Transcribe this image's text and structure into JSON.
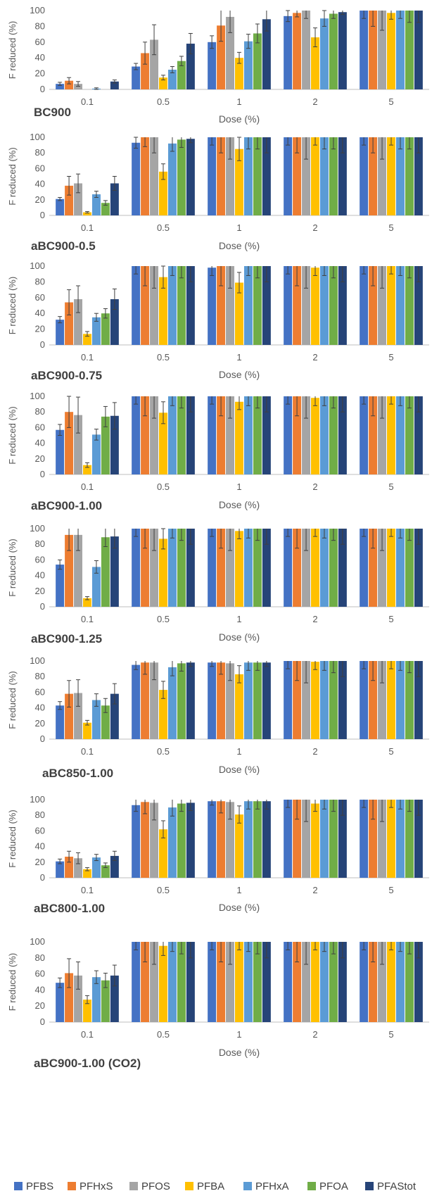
{
  "series_colors": [
    "#4472C4",
    "#ED7D31",
    "#A5A5A5",
    "#FFC000",
    "#5B9BD5",
    "#70AD47",
    "#264478"
  ],
  "chart_data": [
    {
      "type": "bar",
      "title": "BC900",
      "xlabel": "Dose (%)",
      "ylabel": "F reduced (%)",
      "ylim": [
        0,
        100
      ],
      "yticks": [
        0,
        20,
        40,
        60,
        80,
        100
      ],
      "grid": false,
      "legend": "bottom",
      "categories": [
        "0.1",
        "0.5",
        "1",
        "2",
        "5"
      ],
      "series": [
        {
          "name": "PFBS",
          "values": [
            7,
            29,
            60,
            93,
            100
          ],
          "errors": [
            2,
            4,
            8,
            7,
            10
          ]
        },
        {
          "name": "PFHxS",
          "values": [
            11,
            46,
            81,
            97,
            100
          ],
          "errors": [
            4,
            14,
            20,
            5,
            20
          ]
        },
        {
          "name": "PFOS",
          "values": [
            7,
            63,
            92,
            100,
            100
          ],
          "errors": [
            3,
            19,
            20,
            10,
            25
          ]
        },
        {
          "name": "PFBA",
          "values": [
            0,
            15,
            40,
            66,
            97
          ],
          "errors": [
            0,
            3,
            7,
            12,
            8
          ]
        },
        {
          "name": "PFHxA",
          "values": [
            1,
            25,
            61,
            90,
            100
          ],
          "errors": [
            1,
            4,
            9,
            10,
            10
          ]
        },
        {
          "name": "PFOA",
          "values": [
            0,
            36,
            71,
            96,
            100
          ],
          "errors": [
            0,
            6,
            12,
            6,
            15
          ]
        },
        {
          "name": "PFAStot",
          "values": [
            10,
            58,
            89,
            98,
            100
          ],
          "errors": [
            2,
            13,
            15,
            3,
            15
          ]
        }
      ]
    },
    {
      "type": "bar",
      "title": "aBC900-0.5",
      "xlabel": "Dose (%)",
      "ylabel": "F reduced (%)",
      "ylim": [
        0,
        100
      ],
      "yticks": [
        0,
        20,
        40,
        60,
        80,
        100
      ],
      "grid": false,
      "legend": "bottom",
      "categories": [
        "0.1",
        "0.5",
        "1",
        "2",
        "5"
      ],
      "series": [
        {
          "name": "PFBS",
          "values": [
            21,
            93,
            100,
            100,
            100
          ],
          "errors": [
            2,
            7,
            10,
            10,
            10
          ]
        },
        {
          "name": "PFHxS",
          "values": [
            38,
            100,
            100,
            100,
            100
          ],
          "errors": [
            12,
            12,
            20,
            20,
            20
          ]
        },
        {
          "name": "PFOS",
          "values": [
            41,
            100,
            100,
            100,
            100
          ],
          "errors": [
            12,
            20,
            28,
            28,
            28
          ]
        },
        {
          "name": "PFBA",
          "values": [
            4,
            56,
            85,
            100,
            100
          ],
          "errors": [
            1,
            10,
            15,
            10,
            10
          ]
        },
        {
          "name": "PFHxA",
          "values": [
            27,
            92,
            100,
            100,
            100
          ],
          "errors": [
            4,
            10,
            15,
            15,
            15
          ]
        },
        {
          "name": "PFOA",
          "values": [
            16,
            97,
            100,
            100,
            100
          ],
          "errors": [
            3,
            10,
            15,
            15,
            15
          ]
        },
        {
          "name": "PFAStot",
          "values": [
            41,
            98,
            100,
            100,
            100
          ],
          "errors": [
            9,
            5,
            20,
            20,
            20
          ]
        }
      ]
    },
    {
      "type": "bar",
      "title": "aBC900-0.75",
      "xlabel": "Dose (%)",
      "ylabel": "F reduced (%)",
      "ylim": [
        0,
        100
      ],
      "yticks": [
        0,
        20,
        40,
        60,
        80,
        100
      ],
      "grid": false,
      "legend": "bottom",
      "categories": [
        "0.1",
        "0.5",
        "1",
        "2",
        "5"
      ],
      "series": [
        {
          "name": "PFBS",
          "values": [
            32,
            100,
            98,
            100,
            100
          ],
          "errors": [
            4,
            10,
            10,
            10,
            10
          ]
        },
        {
          "name": "PFHxS",
          "values": [
            54,
            100,
            100,
            100,
            100
          ],
          "errors": [
            16,
            25,
            25,
            25,
            25
          ]
        },
        {
          "name": "PFOS",
          "values": [
            58,
            100,
            100,
            100,
            100
          ],
          "errors": [
            17,
            28,
            28,
            28,
            28
          ]
        },
        {
          "name": "PFBA",
          "values": [
            14,
            86,
            79,
            98,
            100
          ],
          "errors": [
            3,
            14,
            13,
            10,
            10
          ]
        },
        {
          "name": "PFHxA",
          "values": [
            35,
            100,
            100,
            100,
            100
          ],
          "errors": [
            5,
            12,
            12,
            12,
            12
          ]
        },
        {
          "name": "PFOA",
          "values": [
            40,
            100,
            100,
            100,
            100
          ],
          "errors": [
            6,
            15,
            15,
            15,
            15
          ]
        },
        {
          "name": "PFAStot",
          "values": [
            58,
            100,
            100,
            100,
            100
          ],
          "errors": [
            13,
            20,
            20,
            20,
            20
          ]
        }
      ]
    },
    {
      "type": "bar",
      "title": "aBC900-1.00",
      "xlabel": "Dose (%)",
      "ylabel": "F reduced (%)",
      "ylim": [
        0,
        100
      ],
      "yticks": [
        0,
        20,
        40,
        60,
        80,
        100
      ],
      "grid": false,
      "legend": "bottom",
      "categories": [
        "0.1",
        "0.5",
        "1",
        "2",
        "5"
      ],
      "series": [
        {
          "name": "PFBS",
          "values": [
            57,
            100,
            100,
            100,
            100
          ],
          "errors": [
            7,
            10,
            10,
            10,
            10
          ]
        },
        {
          "name": "PFHxS",
          "values": [
            80,
            100,
            100,
            100,
            100
          ],
          "errors": [
            20,
            25,
            25,
            25,
            25
          ]
        },
        {
          "name": "PFOS",
          "values": [
            76,
            100,
            100,
            100,
            100
          ],
          "errors": [
            23,
            28,
            28,
            28,
            28
          ]
        },
        {
          "name": "PFBA",
          "values": [
            12,
            79,
            93,
            98,
            100
          ],
          "errors": [
            3,
            14,
            10,
            10,
            10
          ]
        },
        {
          "name": "PFHxA",
          "values": [
            51,
            100,
            100,
            100,
            100
          ],
          "errors": [
            7,
            12,
            12,
            12,
            12
          ]
        },
        {
          "name": "PFOA",
          "values": [
            74,
            100,
            100,
            100,
            100
          ],
          "errors": [
            13,
            15,
            15,
            15,
            15
          ]
        },
        {
          "name": "PFAStot",
          "values": [
            75,
            100,
            100,
            100,
            100
          ],
          "errors": [
            17,
            20,
            20,
            20,
            20
          ]
        }
      ]
    },
    {
      "type": "bar",
      "title": "aBC900-1.25",
      "xlabel": "Dose (%)",
      "ylabel": "F reduced (%)",
      "ylim": [
        0,
        100
      ],
      "yticks": [
        0,
        20,
        40,
        60,
        80,
        100
      ],
      "grid": false,
      "legend": "bottom",
      "categories": [
        "0.1",
        "0.5",
        "1",
        "2",
        "5"
      ],
      "series": [
        {
          "name": "PFBS",
          "values": [
            54,
            100,
            100,
            100,
            100
          ],
          "errors": [
            6,
            10,
            10,
            10,
            10
          ]
        },
        {
          "name": "PFHxS",
          "values": [
            92,
            100,
            100,
            100,
            100
          ],
          "errors": [
            20,
            25,
            25,
            25,
            25
          ]
        },
        {
          "name": "PFOS",
          "values": [
            92,
            100,
            100,
            100,
            100
          ],
          "errors": [
            20,
            28,
            28,
            28,
            28
          ]
        },
        {
          "name": "PFBA",
          "values": [
            11,
            87,
            97,
            100,
            100
          ],
          "errors": [
            2,
            13,
            10,
            10,
            10
          ]
        },
        {
          "name": "PFHxA",
          "values": [
            51,
            100,
            100,
            100,
            100
          ],
          "errors": [
            8,
            12,
            12,
            12,
            12
          ]
        },
        {
          "name": "PFOA",
          "values": [
            89,
            100,
            100,
            100,
            100
          ],
          "errors": [
            12,
            15,
            15,
            15,
            15
          ]
        },
        {
          "name": "PFAStot",
          "values": [
            90,
            100,
            100,
            100,
            100
          ],
          "errors": [
            15,
            20,
            20,
            20,
            20
          ]
        }
      ]
    },
    {
      "type": "bar",
      "title": "aBC850-1.00",
      "xlabel": "Dose (%)",
      "ylabel": "F reduced (%)",
      "ylim": [
        0,
        100
      ],
      "yticks": [
        0,
        20,
        40,
        60,
        80,
        100
      ],
      "grid": false,
      "legend": "bottom",
      "categories": [
        "0.1",
        "0.5",
        "1",
        "2",
        "5"
      ],
      "series": [
        {
          "name": "PFBS",
          "values": [
            43,
            95,
            98,
            100,
            100
          ],
          "errors": [
            5,
            6,
            5,
            10,
            10
          ]
        },
        {
          "name": "PFHxS",
          "values": [
            58,
            98,
            98,
            100,
            100
          ],
          "errors": [
            17,
            15,
            15,
            25,
            25
          ]
        },
        {
          "name": "PFOS",
          "values": [
            59,
            98,
            97,
            100,
            100
          ],
          "errors": [
            17,
            22,
            22,
            28,
            28
          ]
        },
        {
          "name": "PFBA",
          "values": [
            21,
            63,
            83,
            99,
            100
          ],
          "errors": [
            3,
            11,
            11,
            10,
            10
          ]
        },
        {
          "name": "PFHxA",
          "values": [
            50,
            92,
            98,
            100,
            100
          ],
          "errors": [
            8,
            11,
            10,
            12,
            12
          ]
        },
        {
          "name": "PFOA",
          "values": [
            43,
            97,
            98,
            100,
            100
          ],
          "errors": [
            9,
            10,
            10,
            15,
            15
          ]
        },
        {
          "name": "PFAStot",
          "values": [
            58,
            98,
            98,
            100,
            100
          ],
          "errors": [
            13,
            5,
            5,
            20,
            20
          ]
        }
      ]
    },
    {
      "type": "bar",
      "title": "aBC800-1.00",
      "xlabel": "Dose (%)",
      "ylabel": "F reduced (%)",
      "ylim": [
        0,
        100
      ],
      "yticks": [
        0,
        20,
        40,
        60,
        80,
        100
      ],
      "grid": false,
      "legend": "bottom",
      "categories": [
        "0.1",
        "0.5",
        "1",
        "2",
        "5"
      ],
      "series": [
        {
          "name": "PFBS",
          "values": [
            21,
            93,
            98,
            100,
            100
          ],
          "errors": [
            3,
            8,
            5,
            10,
            10
          ]
        },
        {
          "name": "PFHxS",
          "values": [
            27,
            97,
            98,
            100,
            100
          ],
          "errors": [
            7,
            15,
            15,
            25,
            25
          ]
        },
        {
          "name": "PFOS",
          "values": [
            25,
            96,
            97,
            100,
            100
          ],
          "errors": [
            7,
            22,
            22,
            28,
            28
          ]
        },
        {
          "name": "PFBA",
          "values": [
            11,
            62,
            81,
            95,
            100
          ],
          "errors": [
            2,
            11,
            11,
            10,
            10
          ]
        },
        {
          "name": "PFHxA",
          "values": [
            26,
            90,
            98,
            100,
            100
          ],
          "errors": [
            4,
            11,
            10,
            12,
            12
          ]
        },
        {
          "name": "PFOA",
          "values": [
            16,
            95,
            98,
            100,
            100
          ],
          "errors": [
            3,
            10,
            10,
            15,
            15
          ]
        },
        {
          "name": "PFAStot",
          "values": [
            28,
            96,
            98,
            100,
            100
          ],
          "errors": [
            6,
            10,
            10,
            20,
            20
          ]
        }
      ]
    },
    {
      "type": "bar",
      "title": "aBC900-1.00 (CO2)",
      "xlabel": "Dose (%)",
      "ylabel": "F reduced (%)",
      "ylim": [
        0,
        100
      ],
      "yticks": [
        0,
        20,
        40,
        60,
        80,
        100
      ],
      "grid": false,
      "legend": "bottom",
      "categories": [
        "0.1",
        "0.5",
        "1",
        "2",
        "5"
      ],
      "series": [
        {
          "name": "PFBS",
          "values": [
            49,
            100,
            100,
            100,
            100
          ],
          "errors": [
            6,
            10,
            10,
            10,
            10
          ]
        },
        {
          "name": "PFHxS",
          "values": [
            61,
            100,
            100,
            100,
            100
          ],
          "errors": [
            18,
            25,
            25,
            25,
            25
          ]
        },
        {
          "name": "PFOS",
          "values": [
            58,
            100,
            100,
            100,
            100
          ],
          "errors": [
            17,
            28,
            28,
            28,
            28
          ]
        },
        {
          "name": "PFBA",
          "values": [
            28,
            95,
            100,
            100,
            100
          ],
          "errors": [
            5,
            12,
            10,
            10,
            10
          ]
        },
        {
          "name": "PFHxA",
          "values": [
            56,
            100,
            100,
            100,
            100
          ],
          "errors": [
            8,
            12,
            12,
            12,
            12
          ]
        },
        {
          "name": "PFOA",
          "values": [
            52,
            100,
            100,
            100,
            100
          ],
          "errors": [
            9,
            15,
            15,
            15,
            15
          ]
        },
        {
          "name": "PFAStot",
          "values": [
            58,
            100,
            100,
            100,
            100
          ],
          "errors": [
            13,
            20,
            20,
            20,
            20
          ]
        }
      ]
    }
  ],
  "legend": {
    "items": [
      "PFBS",
      "PFHxS",
      "PFOS",
      "PFBA",
      "PFHxA",
      "PFOA",
      "PFAStot"
    ]
  }
}
